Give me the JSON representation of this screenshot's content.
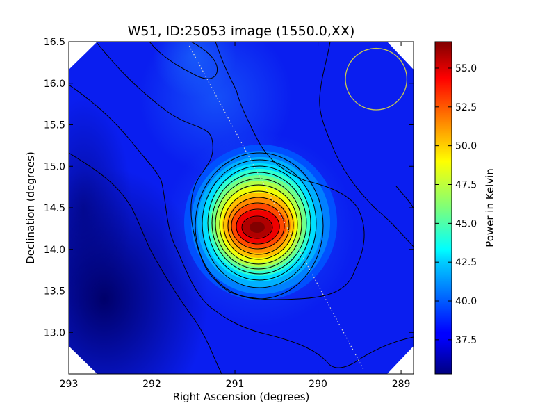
{
  "chart_data": {
    "type": "heatmap",
    "title": "W51, ID:25053 image (1550.0,XX)",
    "xlabel": "Right Ascension (degrees)",
    "ylabel": "Declination (degrees)",
    "xlim": [
      293.0,
      288.85
    ],
    "ylim": [
      12.5,
      16.5
    ],
    "x_ticks": [
      293,
      292,
      291,
      290,
      289
    ],
    "x_tick_labels": [
      "293",
      "292",
      "291",
      "290",
      "289"
    ],
    "y_ticks": [
      13.0,
      13.5,
      14.0,
      14.5,
      15.0,
      15.5,
      16.0,
      16.5
    ],
    "y_tick_labels": [
      "13.0",
      "13.5",
      "14.0",
      "14.5",
      "15.0",
      "15.5",
      "16.0",
      "16.5"
    ],
    "colorbar": {
      "label": "Power in Kelvin",
      "colormap": "jet",
      "range": [
        35.3,
        56.7
      ],
      "ticks": [
        37.5,
        40.0,
        42.5,
        45.0,
        47.5,
        50.0,
        52.5,
        55.0
      ],
      "tick_labels": [
        "37.5",
        "40.0",
        "42.5",
        "45.0",
        "47.5",
        "50.0",
        "52.5",
        "55.0"
      ]
    },
    "peak": {
      "ra": 290.65,
      "dec": 14.25,
      "value": 56.7
    },
    "background_level": 37.5,
    "contours": "black",
    "galactic_plane_line": {
      "style": "dotted",
      "from": [
        291.55,
        16.45
      ],
      "to": [
        289.45,
        12.55
      ]
    },
    "beam_circle": {
      "ra": 289.3,
      "dec": 16.05,
      "radius_deg": 0.37,
      "color": "#c8c850"
    }
  }
}
